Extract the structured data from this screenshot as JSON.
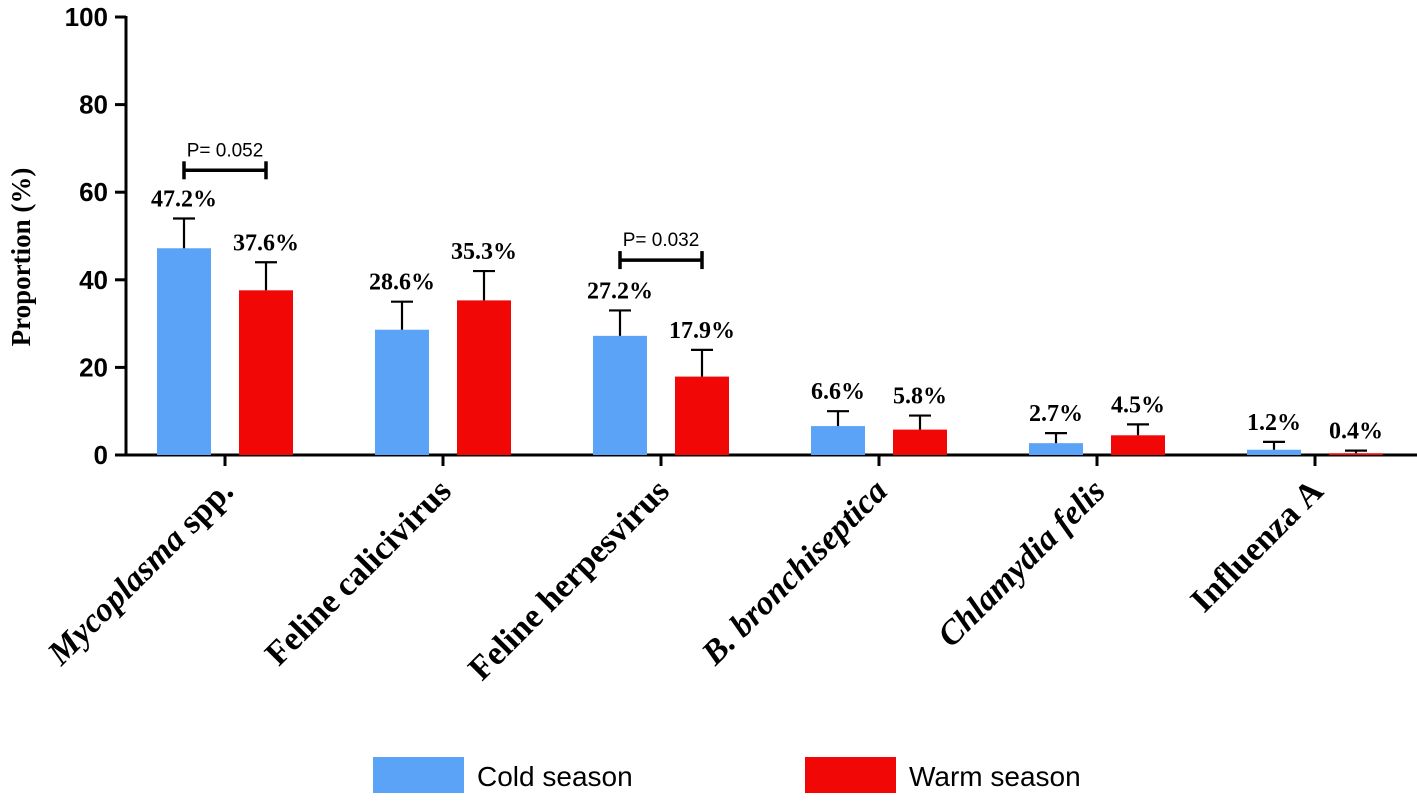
{
  "chart_data": {
    "type": "bar",
    "title": "",
    "xlabel": "",
    "ylabel": "Proportion (%)",
    "ylim": [
      0,
      100
    ],
    "yticks": [
      0,
      20,
      40,
      60,
      80,
      100
    ],
    "categories": [
      {
        "parts": [
          {
            "text": "Mycoplasma",
            "italic": true
          },
          {
            "text": " spp.",
            "italic": false
          }
        ]
      },
      {
        "parts": [
          {
            "text": "Feline calicivirus",
            "italic": false
          }
        ]
      },
      {
        "parts": [
          {
            "text": "Feline herpesvirus",
            "italic": false
          }
        ]
      },
      {
        "parts": [
          {
            "text": "B. bronchiseptica",
            "italic": true
          }
        ]
      },
      {
        "parts": [
          {
            "text": "Chlamydia felis",
            "italic": true
          }
        ]
      },
      {
        "parts": [
          {
            "text": "Influenza A",
            "italic": false
          }
        ]
      }
    ],
    "series": [
      {
        "name": "Cold season",
        "color": "#5aa3f7",
        "values": [
          47.2,
          28.6,
          27.2,
          6.6,
          2.7,
          1.2
        ],
        "error_upper": [
          54,
          35,
          33,
          10,
          5,
          3
        ],
        "labels": [
          "47.2%",
          "28.6%",
          "27.2%",
          "6.6%",
          "2.7%",
          "1.2%"
        ]
      },
      {
        "name": "Warm season",
        "color": "#f20707",
        "values": [
          37.6,
          35.3,
          17.9,
          5.8,
          4.5,
          0.4
        ],
        "error_upper": [
          44,
          42,
          24,
          9,
          7,
          1
        ],
        "labels": [
          "37.6%",
          "35.3%",
          "17.9%",
          "5.8%",
          "4.5%",
          "0.4%"
        ]
      }
    ],
    "annotations": [
      {
        "category_index": 0,
        "text": "P= 0.052",
        "y_value": 65
      },
      {
        "category_index": 2,
        "text": "P= 0.032",
        "y_value": 44.5
      }
    ],
    "legend": {
      "position": "bottom",
      "items": [
        {
          "label": "Cold season",
          "color": "#5aa3f7"
        },
        {
          "label": "Warm season",
          "color": "#f20707"
        }
      ]
    }
  }
}
